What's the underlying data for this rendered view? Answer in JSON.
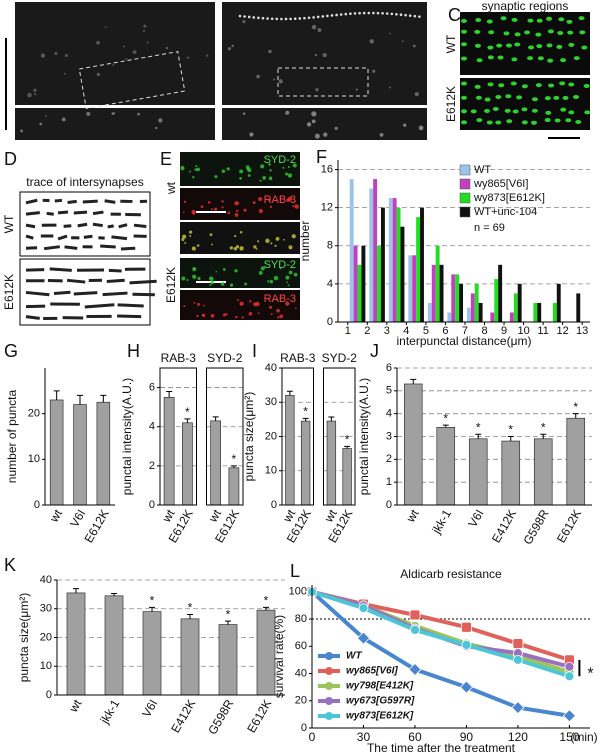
{
  "images": {
    "C": {
      "letter": "C",
      "title": "synaptic regions",
      "rows": [
        "WT",
        "E612K"
      ]
    },
    "D": {
      "letter": "D",
      "title": "trace of intersynapses",
      "rows": [
        "WT",
        "E612K"
      ]
    },
    "E": {
      "letter": "E",
      "rows": [
        "wt",
        "E612K"
      ],
      "channels": [
        "SYD-2",
        "RAB-3",
        "SYD-2",
        "RAB-3"
      ]
    }
  },
  "chart_data": [
    {
      "type": "histogram",
      "panel": "F",
      "ylabel": "number",
      "xlabel": "interpunctal distance(μm)",
      "bins": [
        1,
        2,
        3,
        4,
        5,
        6,
        7,
        8,
        9,
        10,
        11,
        12,
        13
      ],
      "xlim": [
        0.5,
        13.4
      ],
      "xticks": [
        1,
        2,
        3,
        4,
        5,
        6,
        7,
        8,
        9,
        10,
        11,
        12,
        13
      ],
      "ylim": [
        0,
        17
      ],
      "yticks": [
        0,
        4,
        8,
        12,
        16
      ],
      "grid": true,
      "legend": "upper right",
      "annotation": "n = 69",
      "series": [
        {
          "name": "WT",
          "color": "#9cc3e8",
          "values": [
            15,
            14,
            13,
            7,
            2,
            1,
            1.5,
            0,
            0,
            0,
            0,
            0
          ]
        },
        {
          "name": "wy865[V6I]",
          "color": "#c040c0",
          "values": [
            8,
            15,
            13,
            7,
            6,
            5,
            3,
            1,
            1,
            0,
            0,
            0
          ]
        },
        {
          "name": "wy873[E612K]",
          "color": "#22dd22",
          "values": [
            6,
            8,
            12,
            11,
            8,
            5,
            4,
            4.5,
            3,
            2,
            2,
            0
          ]
        },
        {
          "name": "WT+unc-104",
          "color": "#111111",
          "values": [
            8,
            12,
            10,
            12,
            6,
            4,
            2,
            6,
            4,
            2,
            4,
            3
          ]
        }
      ]
    },
    {
      "type": "bar",
      "panel": "G",
      "ylabel": "number of puncta",
      "ylim": [
        0,
        30
      ],
      "yticks": [
        0,
        10,
        20
      ],
      "grid": false,
      "categories": [
        "wt",
        "V6I",
        "E612K"
      ],
      "values": [
        23,
        22,
        22.5
      ],
      "errors": [
        2,
        2,
        1.5
      ],
      "significance": [
        null,
        null,
        null
      ]
    },
    {
      "type": "bar",
      "panel": "H",
      "ylabel": "punctal intensity(A.U.)",
      "ylim": [
        0,
        7
      ],
      "yticks": [
        0,
        2,
        4,
        6
      ],
      "grid": true,
      "panels": [
        {
          "name": "RAB-3",
          "categories": [
            "wt",
            "E612K"
          ],
          "values": [
            5.5,
            4.2
          ],
          "errors": [
            0.3,
            0.2
          ],
          "significance": [
            null,
            "*"
          ]
        },
        {
          "name": "SYD-2",
          "categories": [
            "wt",
            "E612K"
          ],
          "values": [
            4.3,
            1.9
          ],
          "errors": [
            0.2,
            0.1
          ],
          "significance": [
            null,
            "*"
          ]
        }
      ]
    },
    {
      "type": "bar",
      "panel": "I",
      "ylabel": "puncta size(μm²)",
      "ylim": [
        0,
        40
      ],
      "yticks": [
        0,
        10,
        20,
        30,
        40
      ],
      "grid": true,
      "panels": [
        {
          "name": "RAB-3",
          "categories": [
            "wt",
            "E612K"
          ],
          "values": [
            32,
            24.5
          ],
          "errors": [
            1.2,
            0.8
          ],
          "significance": [
            null,
            "*"
          ]
        },
        {
          "name": "SYD-2",
          "categories": [
            "wt",
            "E612K"
          ],
          "values": [
            24.5,
            16.5
          ],
          "errors": [
            1.2,
            0.6
          ],
          "significance": [
            null,
            "*"
          ]
        }
      ]
    },
    {
      "type": "bar",
      "panel": "J",
      "ylabel": "punctal intensity(A.U.)",
      "ylim": [
        0,
        6
      ],
      "yticks": [
        0,
        1,
        2,
        3,
        4,
        5,
        6
      ],
      "grid": true,
      "categories": [
        "wt",
        "jkk-1",
        "V6I",
        "E412K",
        "G598R",
        "E612K"
      ],
      "values": [
        5.3,
        3.4,
        2.9,
        2.8,
        2.9,
        3.8
      ],
      "errors": [
        0.2,
        0.1,
        0.2,
        0.2,
        0.2,
        0.2
      ],
      "significance": [
        null,
        "*",
        "*",
        "*",
        "*",
        "*"
      ]
    },
    {
      "type": "bar",
      "panel": "K",
      "ylabel": "puncta size(μm²)",
      "ylim": [
        0,
        40
      ],
      "yticks": [
        0,
        10,
        20,
        30,
        40
      ],
      "grid": true,
      "categories": [
        "wt",
        "jkk-1",
        "V6I",
        "E412K",
        "G598R",
        "E612K"
      ],
      "values": [
        35.5,
        34.5,
        29,
        26.5,
        24.5,
        29.5
      ],
      "errors": [
        1.5,
        0.8,
        1.5,
        1.5,
        1.2,
        1
      ],
      "significance": [
        null,
        null,
        "*",
        "*",
        "*",
        "*"
      ]
    },
    {
      "type": "line",
      "panel": "L",
      "title": "Aldicarb resistance",
      "ylabel": "survival rate(%)",
      "xlabel": "The time after the treatment",
      "xunit": "(min)",
      "x": [
        0,
        30,
        60,
        90,
        120,
        150
      ],
      "xlim": [
        0,
        162
      ],
      "xticks": [
        0,
        30,
        60,
        90,
        120,
        150
      ],
      "ylim": [
        0,
        105
      ],
      "yticks": [
        0,
        20,
        40,
        60,
        80,
        100
      ],
      "hline": 80,
      "legend": "lower left",
      "annotation": "*",
      "series": [
        {
          "name": "WT",
          "color": "#4a86cf",
          "marker": "diamond",
          "values": [
            100,
            66,
            43,
            30,
            15,
            9
          ]
        },
        {
          "name": "wy865[V6I]",
          "color": "#e0605a",
          "marker": "square",
          "values": [
            100,
            91,
            83,
            74,
            62,
            50
          ]
        },
        {
          "name": "wy798[E412K]",
          "color": "#9bc45a",
          "marker": "circle",
          "values": [
            100,
            90,
            75,
            62,
            53,
            41
          ]
        },
        {
          "name": "wy673[G597R]",
          "color": "#9a70c0",
          "marker": "circle",
          "values": [
            100,
            90,
            73,
            60,
            55,
            45
          ]
        },
        {
          "name": "wy873[E612K]",
          "color": "#4cc6d6",
          "marker": "circle",
          "values": [
            100,
            88,
            72,
            61,
            50,
            38
          ]
        }
      ]
    }
  ]
}
